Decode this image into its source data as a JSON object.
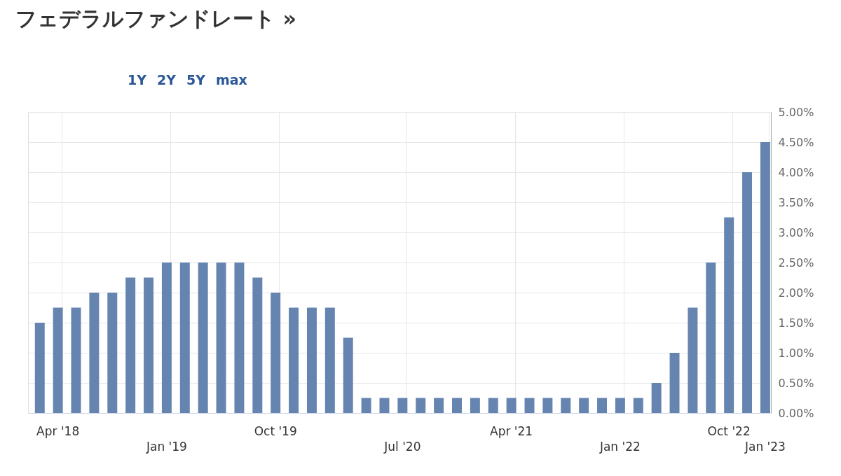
{
  "chart_data": {
    "type": "bar",
    "title": "フェデラルファンドレート »",
    "annotations": [
      "1Y",
      "2Y",
      "5Y",
      "max"
    ],
    "categories": [
      null,
      "Apr '18",
      null,
      null,
      null,
      null,
      null,
      "Jan '19",
      null,
      null,
      null,
      null,
      null,
      "Oct '19",
      null,
      null,
      null,
      null,
      null,
      null,
      "Jul '20",
      null,
      null,
      null,
      null,
      null,
      "Apr '21",
      null,
      null,
      null,
      null,
      null,
      "Jan '22",
      null,
      null,
      null,
      null,
      null,
      "Oct '22",
      null,
      "Jan '23"
    ],
    "values": [
      1.5,
      1.75,
      1.75,
      2,
      2,
      2.25,
      2.25,
      2.5,
      2.5,
      2.5,
      2.5,
      2.5,
      2.25,
      2,
      1.75,
      1.75,
      1.75,
      1.25,
      0.25,
      0.25,
      0.25,
      0.25,
      0.25,
      0.25,
      0.25,
      0.25,
      0.25,
      0.25,
      0.25,
      0.25,
      0.25,
      0.25,
      0.25,
      0.25,
      0.5,
      1,
      1.75,
      2.5,
      3.25,
      4,
      4.5
    ],
    "color": "#6585b0",
    "ylim": [
      0,
      5
    ],
    "yticks": [
      {
        "value": 0,
        "label": "0.00%"
      },
      {
        "value": 0.5,
        "label": "0.50%"
      },
      {
        "value": 1,
        "label": "1.00%"
      },
      {
        "value": 1.5,
        "label": "1.50%"
      },
      {
        "value": 2,
        "label": "2.00%"
      },
      {
        "value": 2.5,
        "label": "2.50%"
      },
      {
        "value": 3,
        "label": "3.00%"
      },
      {
        "value": 3.5,
        "label": "3.50%"
      },
      {
        "value": 4,
        "label": "4.00%"
      },
      {
        "value": 4.5,
        "label": "4.50%"
      },
      {
        "value": 5,
        "label": "5.00%"
      }
    ],
    "grid": true
  }
}
